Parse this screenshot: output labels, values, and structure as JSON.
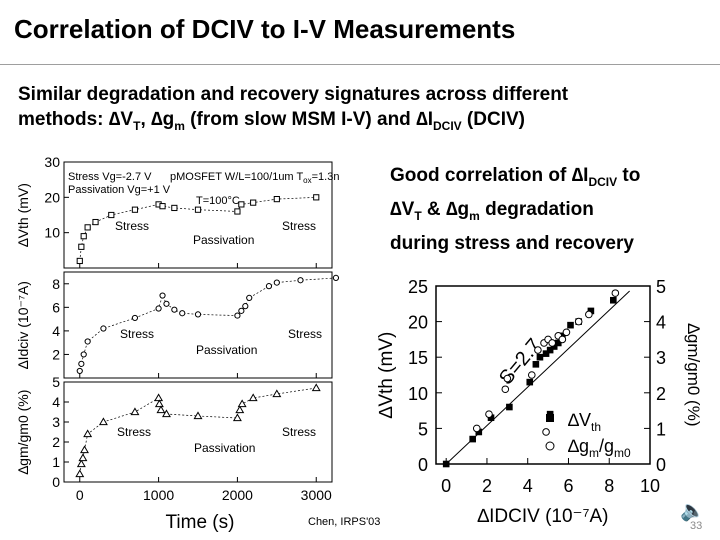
{
  "slide": {
    "title": "Correlation of DCIV to I-V Measurements",
    "bullet": {
      "line1": "Similar degradation and recovery signatures across different",
      "line2_a": "methods: ",
      "sym_vt": "∆V",
      "sub_t": "T",
      "sep": ", ",
      "sym_gm": "∆g",
      "sub_m": "m",
      "mid": " (from slow MSM I-V) and ",
      "sym_i": "∆I",
      "sub_dciv": "DCIV",
      "end": " (DCIV)"
    },
    "callout": {
      "a": "Good correlation of ",
      "sym_i": "∆I",
      "sub_dciv": "DCIV",
      "b": " to",
      "sym_vt": "∆V",
      "sub_t": "T",
      "c": " & ",
      "sym_gm": "∆g",
      "sub_m": "m",
      "d": " degradation",
      "line3": "during stress and recovery"
    },
    "citation": "Chen, IRPS'03",
    "page_number": "33",
    "speaker_icon": "speaker-icon"
  },
  "chart_data": [
    {
      "type": "scatter",
      "title": "",
      "xlabel": "Time (s)",
      "x_ticks": [
        "0",
        "1000",
        "2000",
        "3000"
      ],
      "xlim": [
        -200,
        3200
      ],
      "annotations": {
        "stress_line": "Stress Vg=-2.7 V",
        "passivation_line": "Passivation Vg=+1 V",
        "device_a": "pMOSFET W/L=100/1um  T",
        "device_sub": "ox",
        "device_b": "=1.3nm",
        "temperature": "T=100°C"
      },
      "panels": [
        {
          "ylabel": "∆Vth (mV)",
          "ylim": [
            0,
            30
          ],
          "y_ticks": [
            "10",
            "20",
            "30"
          ],
          "labels": [
            "Stress",
            "Passivation",
            "Stress"
          ],
          "series": [
            {
              "marker": "square",
              "x": [
                0,
                20,
                50,
                100,
                200,
                400,
                700,
                1000,
                1050,
                1200,
                1500,
                2000,
                2050,
                2200,
                2500,
                3000
              ],
              "y": [
                2,
                6,
                9,
                11.5,
                13,
                15,
                16.5,
                18,
                17.5,
                17,
                16.5,
                16,
                18,
                18.5,
                19.5,
                20
              ]
            }
          ]
        },
        {
          "ylabel": "∆Idciv (10⁻⁷A)",
          "ylim": [
            0,
            9
          ],
          "y_ticks": [
            "2",
            "4",
            "6",
            "8"
          ],
          "labels": [
            "Stress",
            "Passivation",
            "Stress"
          ],
          "series": [
            {
              "marker": "circle",
              "x": [
                0,
                20,
                50,
                100,
                300,
                700,
                1000,
                1050,
                1100,
                1200,
                1300,
                1500,
                2000,
                2050,
                2100,
                2150,
                2400,
                2500,
                2800,
                3250
              ],
              "y": [
                0.6,
                1.2,
                2.0,
                3.1,
                4.2,
                5.1,
                5.9,
                7.0,
                6.3,
                5.8,
                5.5,
                5.4,
                5.3,
                5.7,
                6.1,
                6.8,
                7.8,
                8.1,
                8.3,
                8.5
              ]
            }
          ]
        },
        {
          "ylabel": "∆gm/gm0 (%)",
          "ylim": [
            0,
            5
          ],
          "y_ticks": [
            "0",
            "1",
            "2",
            "3",
            "4",
            "5"
          ],
          "labels": [
            "Stress",
            "Passivation",
            "Stress"
          ],
          "series": [
            {
              "marker": "triangle",
              "x": [
                0,
                20,
                40,
                60,
                100,
                300,
                700,
                1000,
                1010,
                1030,
                1100,
                1500,
                2000,
                2030,
                2060,
                2200,
                2500,
                3000
              ],
              "y": [
                0.4,
                0.9,
                1.2,
                1.6,
                2.4,
                3.0,
                3.5,
                4.2,
                3.9,
                3.6,
                3.4,
                3.3,
                3.2,
                3.6,
                3.9,
                4.2,
                4.4,
                4.7
              ]
            }
          ]
        }
      ]
    },
    {
      "type": "scatter",
      "title": "",
      "xlabel": "∆IDCIV (10⁻⁷A)",
      "xlim": [
        -0.5,
        10
      ],
      "x_ticks": [
        "0",
        "2",
        "4",
        "6",
        "8",
        "10"
      ],
      "ylabel": "∆Vth (mV)",
      "ylim": [
        0,
        25
      ],
      "y_ticks": [
        "0",
        "5",
        "10",
        "15",
        "20",
        "25"
      ],
      "y2label": "∆gm/gm0 (%)",
      "y2lim": [
        0,
        5
      ],
      "y2_ticks": [
        "0",
        "1",
        "2",
        "3",
        "4",
        "5"
      ],
      "fit_label": "S=2.7",
      "legend": {
        "vth": "∆V",
        "vth_sub": "th",
        "gm": "∆g",
        "gm_sub1": "m",
        "gm_mid": "/g",
        "gm_sub2": "m0",
        "position": "bottom-right"
      },
      "fit": {
        "x": [
          0,
          9
        ],
        "y": [
          0,
          24.3
        ]
      },
      "series": [
        {
          "name": "∆Vth",
          "marker": "filled-square",
          "x": [
            0,
            1.3,
            1.6,
            2.2,
            3.1,
            4.1,
            4.4,
            4.6,
            4.9,
            5.1,
            5.3,
            5.5,
            5.7,
            6.1,
            6.5,
            7.1,
            8.2,
            5.1
          ],
          "y": [
            0,
            3.5,
            4.5,
            6.5,
            8,
            11.5,
            14,
            15,
            15.5,
            16,
            16.5,
            17,
            18,
            19.5,
            20,
            21.5,
            23,
            7
          ]
        },
        {
          "name": "∆gm/gm0",
          "marker": "open-circle",
          "x": [
            1.5,
            2.1,
            2.9,
            3.0,
            4.2,
            4.5,
            4.8,
            5.0,
            5.2,
            5.5,
            5.7,
            5.9,
            6.5,
            7.0,
            8.3,
            4.9
          ],
          "y": [
            1.0,
            1.4,
            2.1,
            2.4,
            2.5,
            3.2,
            3.4,
            3.5,
            3.4,
            3.6,
            3.5,
            3.7,
            4.0,
            4.2,
            4.8,
            0.9
          ]
        }
      ]
    }
  ]
}
